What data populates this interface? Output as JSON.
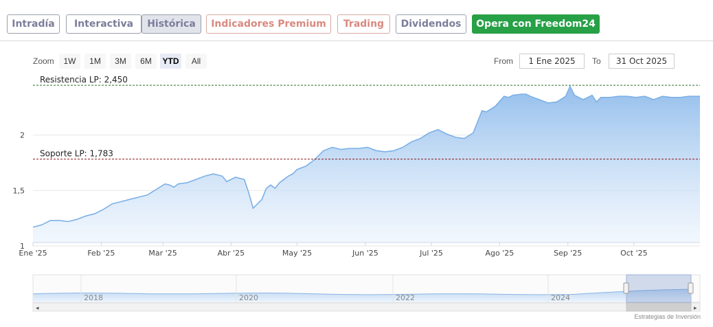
{
  "tabs": [
    {
      "label": "Intradía",
      "kind": "normal"
    },
    {
      "label": "Interactiva",
      "kind": "normal"
    },
    {
      "label": "Histórica",
      "kind": "active"
    },
    {
      "label": "Indicadores Premium",
      "kind": "premium"
    },
    {
      "label": "Trading",
      "kind": "premium"
    },
    {
      "label": "Dividendos",
      "kind": "normal"
    },
    {
      "label": "Opera con Freedom24",
      "kind": "cta"
    }
  ],
  "zoom": {
    "label": "Zoom",
    "buttons": [
      "1W",
      "1M",
      "3M",
      "6M",
      "YTD",
      "All"
    ],
    "selected": "YTD"
  },
  "range": {
    "from_label": "From",
    "from_value": "1 Ene 2025",
    "to_label": "To",
    "to_value": "31 Oct 2025"
  },
  "credit": "Estrategias de Inversión",
  "colors": {
    "line": "#7cb0e6",
    "area_top": "#9cc4ee",
    "resistance": "#2e6b2e",
    "support": "#8b1a1a",
    "cta": "#27a046"
  },
  "chart_data": {
    "type": "area",
    "ylim": [
      1.0,
      2.5
    ],
    "yticks": [
      {
        "value": 1.0,
        "label": "1"
      },
      {
        "value": 1.5,
        "label": "1,5"
      },
      {
        "value": 2.0,
        "label": "2"
      }
    ],
    "xticks": [
      {
        "value": 0,
        "label": "Ene '25"
      },
      {
        "value": 31,
        "label": "Feb '25"
      },
      {
        "value": 59,
        "label": "Mar '25"
      },
      {
        "value": 90,
        "label": "Abr '25"
      },
      {
        "value": 120,
        "label": "May '25"
      },
      {
        "value": 151,
        "label": "Jun '25"
      },
      {
        "value": 181,
        "label": "Jul '25"
      },
      {
        "value": 212,
        "label": "Ago '25"
      },
      {
        "value": 243,
        "label": "Sep '25"
      },
      {
        "value": 273,
        "label": "Oct '25"
      }
    ],
    "xmax": 303,
    "series": [
      {
        "x": [
          0,
          4,
          8,
          12,
          16,
          20,
          24,
          28,
          32,
          36,
          40,
          44,
          48,
          52,
          56,
          60,
          62,
          64,
          66,
          70,
          74,
          78,
          82,
          86,
          88,
          92,
          96,
          98,
          100,
          102,
          104,
          106,
          108,
          110,
          112,
          114,
          116,
          118,
          120,
          124,
          128,
          132,
          136,
          140,
          144,
          148,
          152,
          156,
          160,
          164,
          168,
          172,
          176,
          180,
          184,
          188,
          192,
          196,
          200,
          202,
          204,
          206,
          210,
          214,
          216,
          218,
          222,
          224,
          226,
          230,
          234,
          238,
          242,
          244,
          246,
          248,
          250,
          254,
          256,
          258,
          262,
          266,
          270,
          274,
          278,
          282,
          286,
          290,
          294,
          298,
          303
        ],
        "y": [
          1.17,
          1.19,
          1.23,
          1.23,
          1.22,
          1.24,
          1.27,
          1.29,
          1.33,
          1.38,
          1.4,
          1.42,
          1.44,
          1.46,
          1.51,
          1.56,
          1.55,
          1.53,
          1.56,
          1.57,
          1.6,
          1.63,
          1.65,
          1.63,
          1.58,
          1.62,
          1.6,
          1.48,
          1.34,
          1.38,
          1.42,
          1.52,
          1.55,
          1.52,
          1.57,
          1.6,
          1.63,
          1.65,
          1.69,
          1.72,
          1.78,
          1.86,
          1.89,
          1.87,
          1.88,
          1.88,
          1.89,
          1.86,
          1.85,
          1.86,
          1.89,
          1.94,
          1.97,
          2.02,
          2.05,
          2.01,
          1.98,
          1.97,
          2.02,
          2.12,
          2.22,
          2.21,
          2.26,
          2.35,
          2.34,
          2.36,
          2.37,
          2.37,
          2.35,
          2.32,
          2.29,
          2.3,
          2.35,
          2.44,
          2.36,
          2.34,
          2.32,
          2.36,
          2.3,
          2.34,
          2.34,
          2.35,
          2.35,
          2.34,
          2.35,
          2.32,
          2.35,
          2.34,
          2.34,
          2.35,
          2.35
        ]
      }
    ],
    "hlines": [
      {
        "label": "Resistencia LP: 2,450",
        "value": 2.45,
        "style": "dashed",
        "color": "#2e6b2e"
      },
      {
        "label": "Soporte LP: 1,783",
        "value": 1.783,
        "style": "dashed",
        "color": "#8b1a1a"
      }
    ],
    "navigator": {
      "labels": [
        "2018",
        "2020",
        "2022",
        "2024"
      ]
    }
  }
}
